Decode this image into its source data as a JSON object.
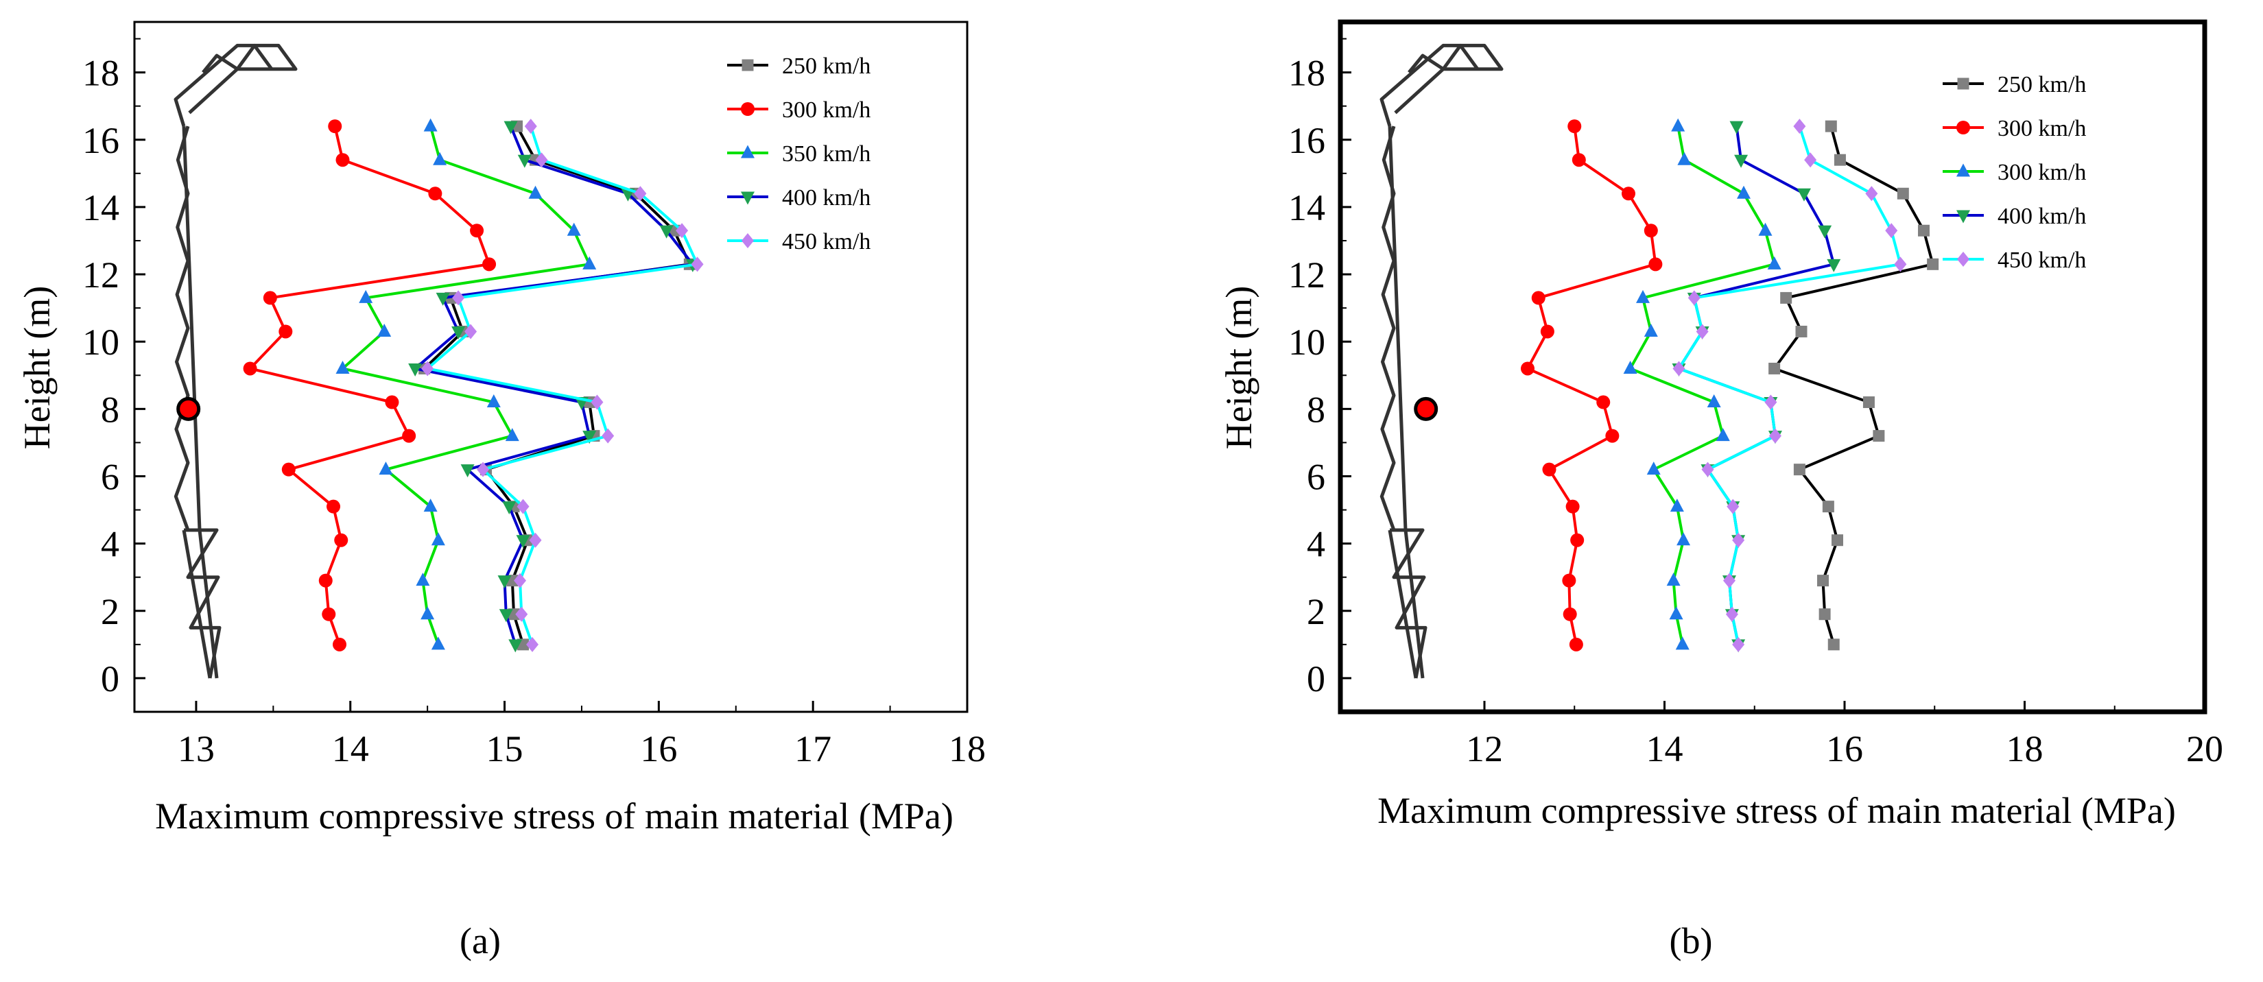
{
  "chart_data": [
    {
      "type": "line",
      "panel_label": "(a)",
      "xlabel": "Maximum compressive stress of main material (MPa)",
      "ylabel": "Height (m)",
      "xlim": [
        12.6,
        18.0
      ],
      "ylim": [
        -1.0,
        19.5
      ],
      "xticks": [
        "13",
        "14",
        "15",
        "16",
        "17",
        "18"
      ],
      "yticks": [
        "0",
        "2",
        "4",
        "6",
        "8",
        "10",
        "12",
        "14",
        "16",
        "18"
      ],
      "legend": "top-right",
      "heights": [
        1.0,
        1.9,
        2.9,
        4.1,
        5.1,
        6.2,
        7.2,
        8.2,
        9.2,
        10.3,
        11.3,
        12.3,
        13.3,
        14.4,
        15.4,
        16.4
      ],
      "marker_point": {
        "x": 12.95,
        "y": 8.0
      },
      "series": [
        {
          "name": "250 km/h",
          "color": "#000000",
          "marker": "square",
          "values": [
            15.12,
            15.06,
            15.05,
            15.15,
            15.06,
            14.88,
            15.58,
            15.55,
            14.48,
            14.73,
            14.65,
            16.2,
            16.1,
            15.85,
            15.2,
            15.08
          ]
        },
        {
          "name": "300 km/h",
          "color": "#ff0000",
          "marker": "circle",
          "values": [
            13.93,
            13.86,
            13.84,
            13.94,
            13.89,
            13.6,
            14.38,
            14.27,
            13.35,
            13.58,
            13.48,
            14.9,
            14.82,
            14.55,
            13.95,
            13.9
          ]
        },
        {
          "name": "350 km/h",
          "color": "#00e000",
          "marker": "triangle-up",
          "values": [
            14.57,
            14.5,
            14.47,
            14.57,
            14.52,
            14.23,
            15.05,
            14.93,
            13.95,
            14.22,
            14.1,
            15.55,
            15.45,
            15.2,
            14.58,
            14.52
          ]
        },
        {
          "name": "400 km/h",
          "color": "#0000cc",
          "marker": "triangle-down",
          "values": [
            15.07,
            15.01,
            15.0,
            15.12,
            15.03,
            14.76,
            15.55,
            15.5,
            14.42,
            14.7,
            14.6,
            16.22,
            16.05,
            15.8,
            15.13,
            15.04
          ]
        },
        {
          "name": "450 km/h",
          "color": "#00ffff",
          "marker": "diamond",
          "values": [
            15.18,
            15.11,
            15.1,
            15.2,
            15.12,
            14.86,
            15.67,
            15.6,
            14.5,
            14.78,
            14.7,
            16.25,
            16.15,
            15.88,
            15.24,
            15.17
          ]
        }
      ]
    },
    {
      "type": "line",
      "panel_label": "(b)",
      "xlabel": "Maximum compressive stress of main material (MPa)",
      "ylabel": "Height (m)",
      "xlim": [
        10.4,
        20.0
      ],
      "ylim": [
        -1.0,
        19.5
      ],
      "xticks": [
        "12",
        "14",
        "16",
        "18",
        "20"
      ],
      "yticks": [
        "0",
        "2",
        "4",
        "6",
        "8",
        "10",
        "12",
        "14",
        "16",
        "18"
      ],
      "legend": "top-right",
      "heights": [
        1.0,
        1.9,
        2.9,
        4.1,
        5.1,
        6.2,
        7.2,
        8.2,
        9.2,
        10.3,
        11.3,
        12.3,
        13.3,
        14.4,
        15.4,
        16.4
      ],
      "marker_point": {
        "x": 11.35,
        "y": 8.0
      },
      "series": [
        {
          "name": "250 km/h",
          "color": "#000000",
          "marker": "square",
          "values": [
            15.88,
            15.78,
            15.76,
            15.92,
            15.82,
            15.5,
            16.38,
            16.27,
            15.22,
            15.52,
            15.35,
            16.98,
            16.88,
            16.65,
            15.95,
            15.85
          ]
        },
        {
          "name": "300 km/h",
          "color": "#ff0000",
          "marker": "circle",
          "values": [
            13.02,
            12.95,
            12.94,
            13.03,
            12.98,
            12.72,
            13.42,
            13.32,
            12.48,
            12.7,
            12.6,
            13.9,
            13.85,
            13.6,
            13.05,
            13.0
          ]
        },
        {
          "name": "300 km/h",
          "color": "#00e000",
          "marker": "triangle-up",
          "values": [
            14.2,
            14.13,
            14.1,
            14.21,
            14.14,
            13.88,
            14.65,
            14.55,
            13.62,
            13.85,
            13.76,
            15.22,
            15.12,
            14.88,
            14.22,
            14.15
          ]
        },
        {
          "name": "400 km/h",
          "color": "#0000cc",
          "marker": "triangle-down",
          "values": [
            14.82,
            14.75,
            14.72,
            14.82,
            14.76,
            14.48,
            15.23,
            15.18,
            14.16,
            14.42,
            14.33,
            15.88,
            15.78,
            15.55,
            14.85,
            14.8
          ]
        },
        {
          "name": "450 km/h",
          "color": "#00ffff",
          "marker": "diamond",
          "values": [
            14.82,
            14.75,
            14.72,
            14.82,
            14.76,
            14.48,
            15.23,
            15.18,
            14.16,
            14.42,
            14.33,
            16.62,
            16.52,
            16.3,
            15.62,
            15.5
          ]
        }
      ]
    }
  ]
}
